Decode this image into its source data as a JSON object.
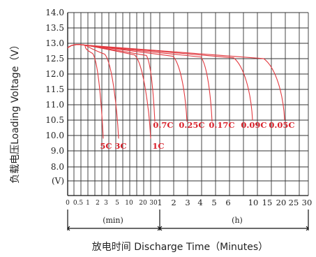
{
  "chart_data": {
    "type": "line",
    "title": "",
    "ylabel": "负载电压Loading Voltage（V）",
    "xlabel": "放电时间  Discharge Time（Minutes）",
    "y_unit_label": "(V)",
    "ylim": [
      7.0,
      14.0
    ],
    "y_ticks": [
      "14.0",
      "13.5",
      "13.0",
      "12.5",
      "12.0",
      "11.5",
      "11.0",
      "10.5",
      "10.0",
      "9.0",
      "8.0"
    ],
    "x_ticks_min": [
      "0",
      "0.5",
      "1",
      "2",
      "3",
      "5",
      "10",
      "20",
      "30"
    ],
    "x_ticks_h": [
      "1",
      "2",
      "3",
      "4",
      "5",
      "6",
      "10",
      "15",
      "20",
      "25",
      "30"
    ],
    "x_segment_labels": {
      "min": "(min)",
      "h": "(h)"
    },
    "series": [
      {
        "name": "5C",
        "end_minutes": 3,
        "end_voltage": 9.8
      },
      {
        "name": "3C",
        "end_minutes": 5,
        "end_voltage": 9.8
      },
      {
        "name": "1C",
        "end_minutes": 45,
        "end_voltage": 9.8
      },
      {
        "name": "0.7C",
        "end_minutes": 60,
        "end_voltage": 10.5
      },
      {
        "name": "0.25C",
        "end_minutes": 180,
        "end_voltage": 10.5
      },
      {
        "name": "0.17C",
        "end_minutes": 300,
        "end_voltage": 10.5
      },
      {
        "name": "0.09C",
        "end_minutes": 600,
        "end_voltage": 10.5
      },
      {
        "name": "0.05C",
        "end_minutes": 1200,
        "end_voltage": 10.5
      }
    ],
    "legend": "none",
    "grid": true
  }
}
